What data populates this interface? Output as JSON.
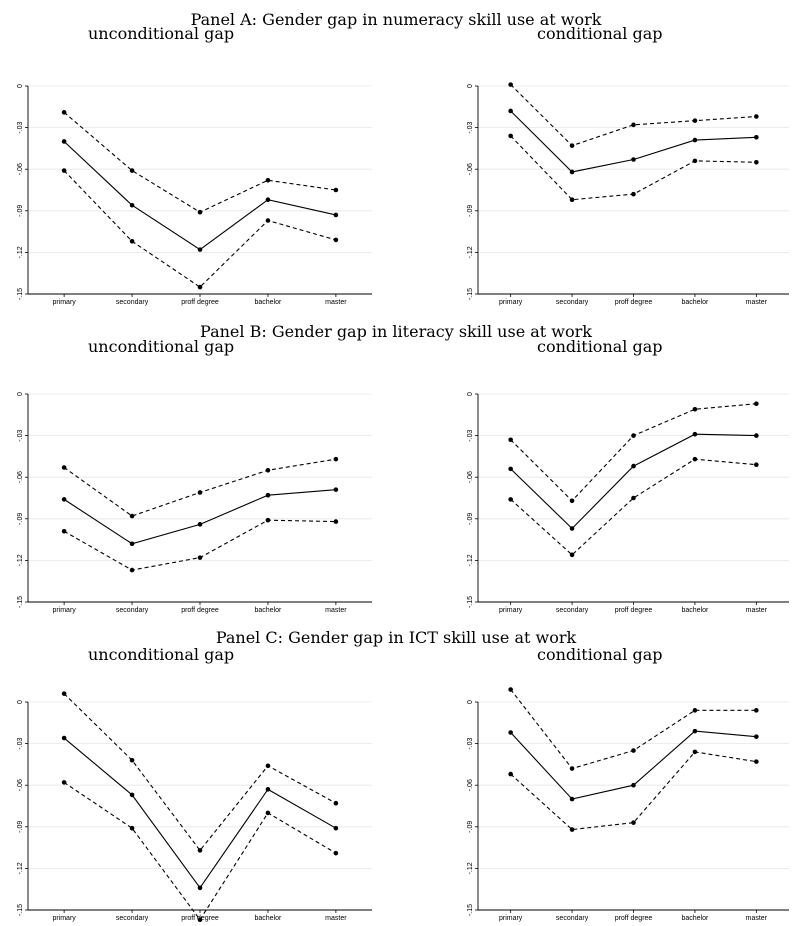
{
  "panels": [
    {
      "title": "Panel A: Gender gap in numeracy skill use at work"
    },
    {
      "title": "Panel B: Gender gap in literacy skill use at work"
    },
    {
      "title": "Panel C: Gender gap in ICT skill use at work"
    }
  ],
  "chart_data": [
    {
      "type": "line",
      "title": "unconditional gap",
      "categories": [
        "primary",
        "secondary",
        "proff degree",
        "bachelor",
        "master"
      ],
      "yticks": [
        "0",
        "-.03",
        "-.06",
        "-.09",
        "-.12",
        "-.15"
      ],
      "ylim": [
        -0.15,
        0
      ],
      "grid": true,
      "series": [
        {
          "style": "dashed",
          "values": [
            -0.019,
            -0.061,
            -0.091,
            -0.068,
            -0.075
          ]
        },
        {
          "style": "solid",
          "values": [
            -0.04,
            -0.086,
            -0.118,
            -0.082,
            -0.093
          ]
        },
        {
          "style": "dashed",
          "values": [
            -0.061,
            -0.112,
            -0.145,
            -0.097,
            -0.111
          ]
        }
      ]
    },
    {
      "type": "line",
      "title": "conditional gap",
      "categories": [
        "primary",
        "secondary",
        "proff degree",
        "bachelor",
        "master"
      ],
      "yticks": [
        "0",
        "-.03",
        "-.06",
        "-.09",
        "-.12",
        "-.15"
      ],
      "ylim": [
        -0.15,
        0
      ],
      "grid": true,
      "series": [
        {
          "style": "dashed",
          "values": [
            0.001,
            -0.043,
            -0.028,
            -0.025,
            -0.022
          ]
        },
        {
          "style": "solid",
          "values": [
            -0.018,
            -0.062,
            -0.053,
            -0.039,
            -0.037
          ]
        },
        {
          "style": "dashed",
          "values": [
            -0.036,
            -0.082,
            -0.078,
            -0.054,
            -0.055
          ]
        }
      ]
    },
    {
      "type": "line",
      "title": "unconditional gap",
      "categories": [
        "primary",
        "secondary",
        "proff degree",
        "bachelor",
        "master"
      ],
      "yticks": [
        "0",
        "-.03",
        "-.06",
        "-.09",
        "-.12",
        "-.15"
      ],
      "ylim": [
        -0.15,
        0
      ],
      "grid": true,
      "series": [
        {
          "style": "dashed",
          "values": [
            -0.053,
            -0.088,
            -0.071,
            -0.055,
            -0.047
          ]
        },
        {
          "style": "solid",
          "values": [
            -0.076,
            -0.108,
            -0.094,
            -0.073,
            -0.069
          ]
        },
        {
          "style": "dashed",
          "values": [
            -0.099,
            -0.127,
            -0.118,
            -0.091,
            -0.092
          ]
        }
      ]
    },
    {
      "type": "line",
      "title": "conditional gap",
      "categories": [
        "primary",
        "secondary",
        "proff degree",
        "bachelor",
        "master"
      ],
      "yticks": [
        "0",
        "-.03",
        "-.06",
        "-.09",
        "-.12",
        "-.15"
      ],
      "ylim": [
        -0.15,
        0
      ],
      "grid": true,
      "series": [
        {
          "style": "dashed",
          "values": [
            -0.033,
            -0.077,
            -0.03,
            -0.011,
            -0.007
          ]
        },
        {
          "style": "solid",
          "values": [
            -0.054,
            -0.097,
            -0.052,
            -0.029,
            -0.03
          ]
        },
        {
          "style": "dashed",
          "values": [
            -0.076,
            -0.116,
            -0.075,
            -0.047,
            -0.051
          ]
        }
      ]
    },
    {
      "type": "line",
      "title": "unconditional gap",
      "categories": [
        "primary",
        "secondary",
        "proff degree",
        "bachelor",
        "master"
      ],
      "yticks": [
        "0",
        "-.03",
        "-.06",
        "-.09",
        "-.12",
        "-.15"
      ],
      "ylim": [
        -0.15,
        0
      ],
      "grid": true,
      "series": [
        {
          "style": "dashed",
          "values": [
            0.006,
            -0.042,
            -0.107,
            -0.046,
            -0.073
          ]
        },
        {
          "style": "solid",
          "values": [
            -0.026,
            -0.067,
            -0.134,
            -0.063,
            -0.091
          ]
        },
        {
          "style": "dashed",
          "values": [
            -0.058,
            -0.091,
            -0.157,
            -0.08,
            -0.109
          ]
        }
      ]
    },
    {
      "type": "line",
      "title": "conditional gap",
      "categories": [
        "primary",
        "secondary",
        "proff degree",
        "bachelor",
        "master"
      ],
      "yticks": [
        "0",
        "-.03",
        "-.06",
        "-.09",
        "-.12",
        "-.15"
      ],
      "ylim": [
        -0.15,
        0
      ],
      "grid": true,
      "series": [
        {
          "style": "dashed",
          "values": [
            0.009,
            -0.048,
            -0.035,
            -0.006,
            -0.006
          ]
        },
        {
          "style": "solid",
          "values": [
            -0.022,
            -0.07,
            -0.06,
            -0.021,
            -0.025
          ]
        },
        {
          "style": "dashed",
          "values": [
            -0.052,
            -0.092,
            -0.087,
            -0.036,
            -0.043
          ]
        }
      ]
    }
  ]
}
